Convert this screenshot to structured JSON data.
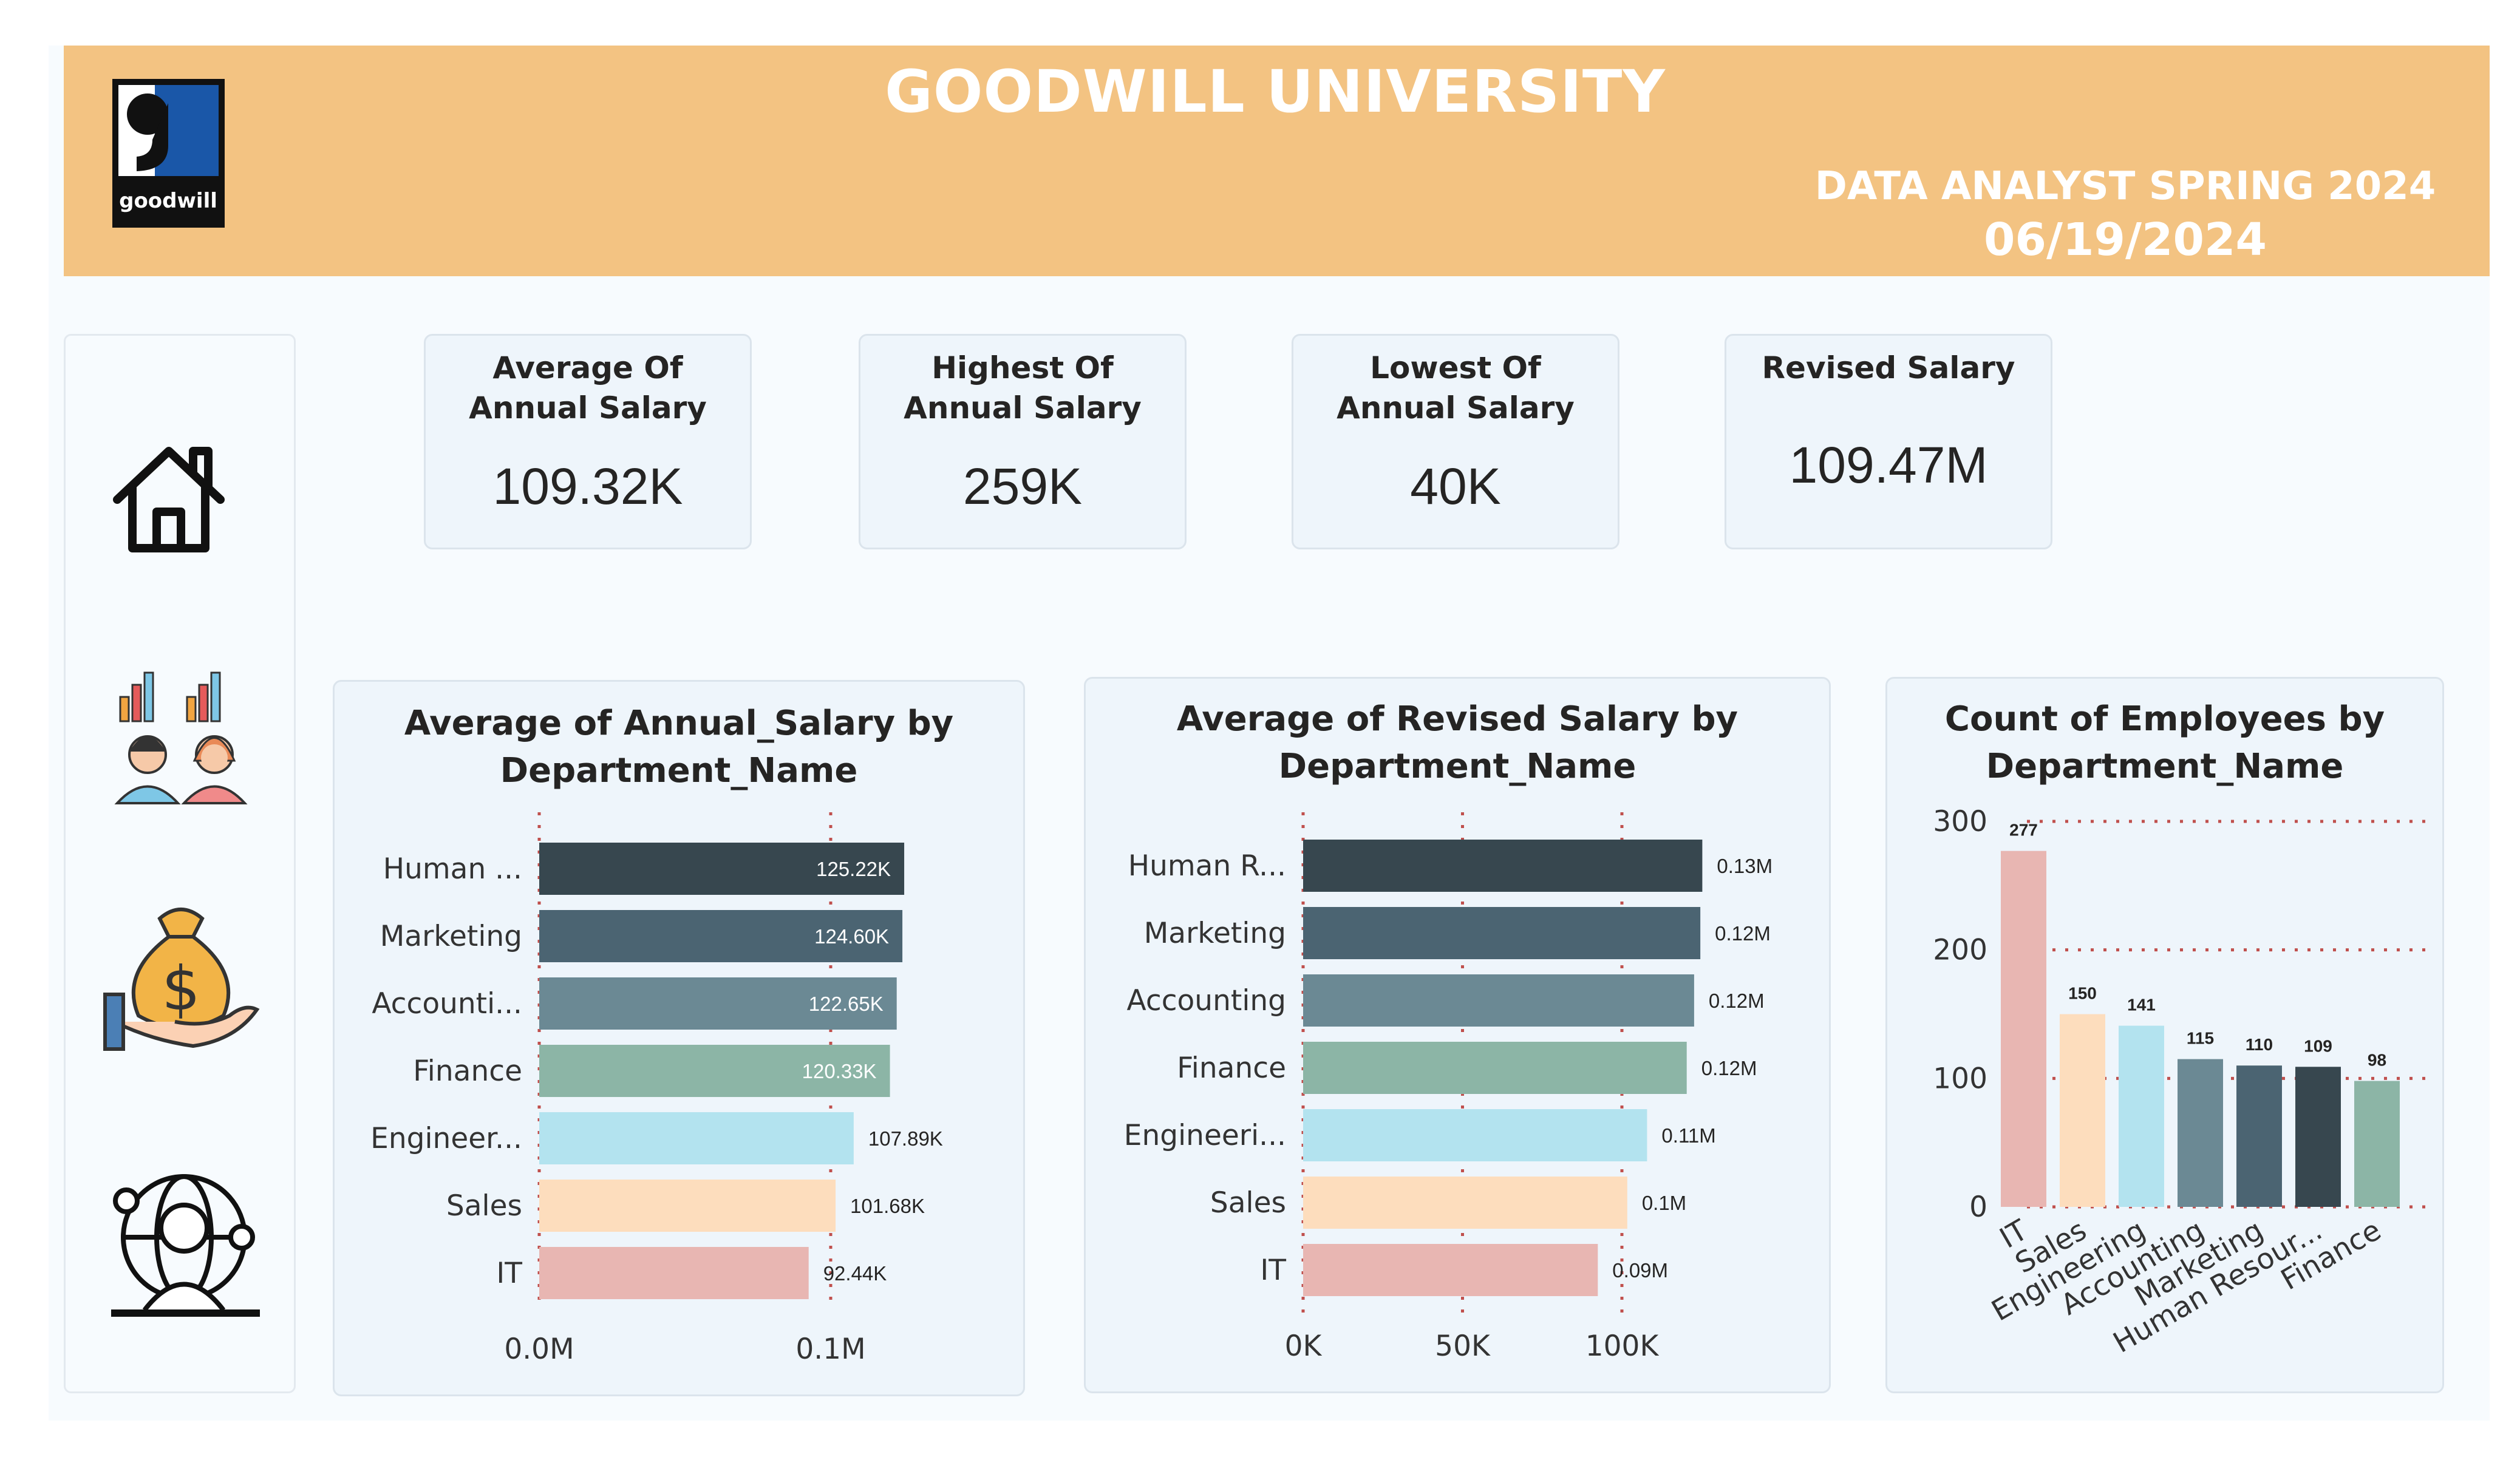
{
  "header": {
    "title": "GOODWILL UNIVERSITY",
    "subtitle_line1": "DATA ANALYST SPRING 2024",
    "subtitle_line2": "06/19/2024",
    "logo_text": "goodwill",
    "logo_letter": "g"
  },
  "sidebar": {
    "icons": [
      "home-icon",
      "analytics-team-icon",
      "money-bag-hand-icon",
      "global-employee-icon"
    ]
  },
  "kpis": [
    {
      "label": "Average Of Annual Salary",
      "value": "109.32K"
    },
    {
      "label": "Highest Of Annual Salary",
      "value": "259K"
    },
    {
      "label": "Lowest Of Annual Salary",
      "value": "40K"
    },
    {
      "label": "Revised Salary",
      "value": "109.47M"
    }
  ],
  "colors": {
    "header": "#f3c382",
    "bars": [
      "#37474f",
      "#4b6472",
      "#6b8994",
      "#8cb5a6",
      "#b3e3ef",
      "#fdddbd",
      "#e8b6b2"
    ],
    "gridline": "#c0504d"
  },
  "chart_data": [
    {
      "type": "bar",
      "orientation": "horizontal",
      "title": "Average of Annual_Salary by Department_Name",
      "categories": [
        "Human ...",
        "Marketing",
        "Accounti...",
        "Finance",
        "Engineer...",
        "Sales",
        "IT"
      ],
      "values": [
        125220,
        124600,
        122650,
        120330,
        107890,
        101680,
        92440
      ],
      "data_labels": [
        "125.22K",
        "124.60K",
        "122.65K",
        "120.33K",
        "107.89K",
        "101.68K",
        "92.44K"
      ],
      "xlim": [
        0,
        100000
      ],
      "xticks": [
        0,
        100000
      ],
      "xtick_labels": [
        "0.0M",
        "0.1M"
      ],
      "grid": true
    },
    {
      "type": "bar",
      "orientation": "horizontal",
      "title": "Average of Revised Salary by Department_Name",
      "categories": [
        "Human R...",
        "Marketing",
        "Accounting",
        "Finance",
        "Engineeri...",
        "Sales",
        "IT"
      ],
      "values": [
        125220,
        124600,
        122650,
        120330,
        107890,
        101680,
        92440
      ],
      "data_labels": [
        "0.13M",
        "0.12M",
        "0.12M",
        "0.12M",
        "0.11M",
        "0.1M",
        "0.09M"
      ],
      "xlim": [
        0,
        100000
      ],
      "xticks": [
        0,
        50000,
        100000
      ],
      "xtick_labels": [
        "0K",
        "50K",
        "100K"
      ],
      "grid": true
    },
    {
      "type": "bar",
      "orientation": "vertical",
      "title": "Count of Employees by Department_Name",
      "categories": [
        "IT",
        "Sales",
        "Engineering",
        "Accounting",
        "Marketing",
        "Human Resour...",
        "Finance"
      ],
      "values": [
        277,
        150,
        141,
        115,
        110,
        109,
        98
      ],
      "data_labels": [
        "277",
        "150",
        "141",
        "115",
        "110",
        "109",
        "98"
      ],
      "ylim": [
        0,
        300
      ],
      "yticks": [
        0,
        100,
        200,
        300
      ],
      "grid": true
    }
  ]
}
